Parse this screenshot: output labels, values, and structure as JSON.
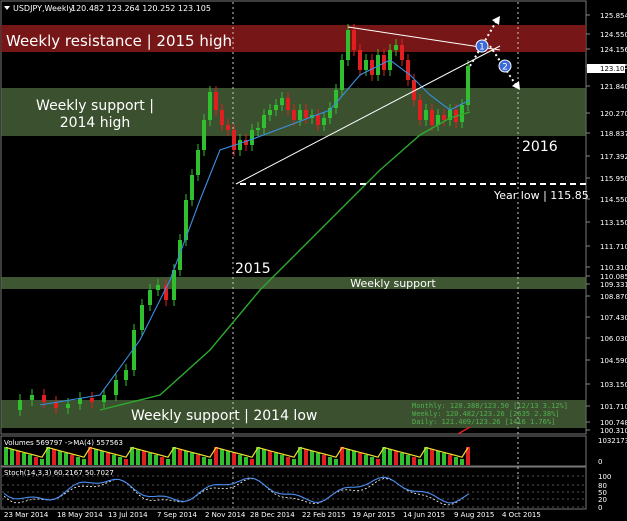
{
  "window": {
    "title": "USDJPY,Weekly",
    "ohlc": "120.482 123.264 120.252 123.105"
  },
  "annotations": {
    "resistance_2015_high": "Weekly resistance | 2015 high",
    "support_2014_high_line1": "Weekly support |",
    "support_2014_high_line2": "2014 high",
    "weekly_support": "Weekly support",
    "support_2014_low": "Weekly support | 2014 low",
    "year_2015": "2015",
    "year_2016": "2016",
    "year_low": "Year low | 115.85",
    "marker_1": "1",
    "marker_2": "2"
  },
  "price_axis": {
    "labels": [
      "125.854",
      "124.550",
      "124.156",
      "123.105",
      "121.840",
      "120.270",
      "118.837",
      "117.392",
      "115.950",
      "114.550",
      "113.150",
      "111.710",
      "110.310",
      "110.085",
      "109.331",
      "108.870",
      "107.430",
      "106.030",
      "104.590",
      "103.150",
      "101.710",
      "100.748",
      "100.310"
    ],
    "current_price": "123.105"
  },
  "time_axis": {
    "labels": [
      "23 Mar 2014",
      "18 May 2014",
      "13 Jul 2014",
      "7 Sep 2014",
      "2 Nov 2014",
      "28 Dec 2014",
      "22 Feb 2015",
      "19 Apr 2015",
      "14 Jun 2015",
      "9 Aug 2015",
      "4 Oct 2015"
    ]
  },
  "info_panel": {
    "monthly": "Monthly:  120.388/123.50  [12/13 3.12%]",
    "weekly": "Weekly:   120.482/123.26  [2635 2.38%]",
    "daily": "Daily:    121.409/123.26  [1416 1.76%]"
  },
  "volume_panel": {
    "title": "Volumes 569797 ->MA(4) 557563",
    "axis_top": "1032173",
    "axis_zero": "0"
  },
  "stoch_panel": {
    "title": "Stoch(14,3,3) 60.2167 50.7027",
    "levels": [
      "100",
      "80",
      "50",
      "20",
      "0"
    ]
  },
  "colors": {
    "bull": "#2fbf2f",
    "bear": "#e02020",
    "resistance_band": "#8b1a1a",
    "support_band": "#4f6b3f",
    "ma_fast": "#3a8fe0",
    "ma_slow": "#2ea82e",
    "volume_ma": "#f0e030",
    "stoch_main": "#4a8ef0",
    "stoch_signal": "#ffffff"
  }
}
